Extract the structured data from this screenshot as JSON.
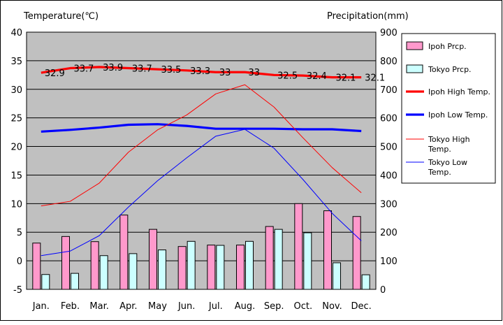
{
  "chart_data": {
    "type": "bar",
    "title": "",
    "categories": [
      "Jan.",
      "Feb.",
      "Mar.",
      "Apr.",
      "May",
      "Jun.",
      "Jul.",
      "Aug.",
      "Sep.",
      "Oct.",
      "Nov.",
      "Dec."
    ],
    "y_left": {
      "label": "Temperature(℃)",
      "range": [
        -5,
        40
      ],
      "ticks": [
        -5,
        0,
        5,
        10,
        15,
        20,
        25,
        30,
        35,
        40
      ]
    },
    "y_right": {
      "label": "Precipitation(mm)",
      "range": [
        0,
        900
      ],
      "ticks": [
        0,
        100,
        200,
        300,
        400,
        500,
        600,
        700,
        800,
        900
      ]
    },
    "grid": true,
    "legend_position": "right",
    "bar_series": [
      {
        "name": "Ipoh Prcp.",
        "color": "#ff99cc",
        "values": [
          162,
          185,
          167,
          260,
          210,
          150,
          155,
          155,
          220,
          300,
          275,
          255
        ]
      },
      {
        "name": "Tokyo Prcp.",
        "color": "#ccffff",
        "values": [
          52,
          56,
          118,
          125,
          138,
          168,
          154,
          168,
          210,
          198,
          93,
          51
        ]
      }
    ],
    "line_series": [
      {
        "name": "Ipoh High Temp.",
        "color": "#ff0000",
        "width": "thick",
        "values": [
          32.9,
          33.7,
          33.9,
          33.7,
          33.5,
          33.3,
          33,
          33,
          32.5,
          32.4,
          32.1,
          32.1
        ],
        "labels": [
          "32.9",
          "33.7",
          "33.9",
          "33.7",
          "33.5",
          "33.3",
          "33",
          "33",
          "32.5",
          "32.4",
          "32.1",
          "32.1"
        ]
      },
      {
        "name": "Ipoh Low Temp.",
        "color": "#0000ff",
        "width": "thick",
        "values": [
          22.6,
          22.9,
          23.3,
          23.8,
          23.9,
          23.6,
          23.1,
          23.1,
          23.1,
          23.0,
          23.0,
          22.7
        ]
      },
      {
        "name": "Tokyo High Temp.",
        "color": "#ff0000",
        "width": "thin",
        "values": [
          9.6,
          10.4,
          13.6,
          19.0,
          22.9,
          25.5,
          29.2,
          30.8,
          26.9,
          21.5,
          16.3,
          11.9
        ]
      },
      {
        "name": "Tokyo Low Temp.",
        "color": "#0000ff",
        "width": "thin",
        "values": [
          0.9,
          1.7,
          4.4,
          9.4,
          14.0,
          18.0,
          21.8,
          23.0,
          19.7,
          14.2,
          8.3,
          3.5
        ]
      }
    ],
    "legend": [
      {
        "label": "Ipoh Prcp.",
        "kind": "box",
        "color": "#ff99cc"
      },
      {
        "label": "Tokyo Prcp.",
        "kind": "box",
        "color": "#ccffff"
      },
      {
        "label": "Ipoh High Temp.",
        "kind": "thick-line",
        "color": "#ff0000"
      },
      {
        "label": "Ipoh Low Temp.",
        "kind": "thick-line",
        "color": "#0000ff"
      },
      {
        "label": "Tokyo High Temp.",
        "kind": "thin-line",
        "color": "#ff0000"
      },
      {
        "label": "Tokyo Low Temp.",
        "kind": "thin-line",
        "color": "#0000ff"
      }
    ],
    "plot_background": "#c0c0c0"
  }
}
